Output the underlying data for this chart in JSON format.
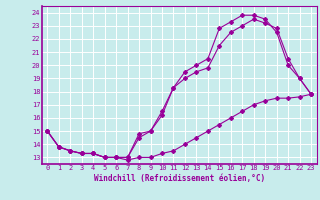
{
  "title": "",
  "xlabel": "Windchill (Refroidissement éolien,°C)",
  "ylabel": "",
  "bg_color": "#c8ecec",
  "grid_color": "#ffffff",
  "line_color": "#990099",
  "xlim": [
    -0.5,
    23.5
  ],
  "ylim": [
    12.5,
    24.5
  ],
  "xticks": [
    0,
    1,
    2,
    3,
    4,
    5,
    6,
    7,
    8,
    9,
    10,
    11,
    12,
    13,
    14,
    15,
    16,
    17,
    18,
    19,
    20,
    21,
    22,
    23
  ],
  "yticks": [
    13,
    14,
    15,
    16,
    17,
    18,
    19,
    20,
    21,
    22,
    23,
    24
  ],
  "line1_x": [
    0,
    1,
    2,
    3,
    4,
    5,
    6,
    7,
    8,
    9,
    10,
    11,
    12,
    13,
    14,
    15,
    16,
    17,
    18,
    19,
    20,
    21,
    22,
    23
  ],
  "line1_y": [
    15.0,
    13.8,
    13.5,
    13.3,
    13.3,
    13.0,
    13.0,
    12.8,
    13.0,
    13.0,
    13.3,
    13.5,
    14.0,
    14.5,
    15.0,
    15.5,
    16.0,
    16.5,
    17.0,
    17.3,
    17.5,
    17.5,
    17.6,
    17.8
  ],
  "line2_x": [
    0,
    1,
    2,
    3,
    4,
    5,
    6,
    7,
    8,
    9,
    10,
    11,
    12,
    13,
    14,
    15,
    16,
    17,
    18,
    19,
    20,
    21,
    22,
    23
  ],
  "line2_y": [
    15.0,
    13.8,
    13.5,
    13.3,
    13.3,
    13.0,
    13.0,
    13.0,
    14.5,
    15.0,
    16.2,
    18.3,
    19.0,
    19.5,
    19.8,
    21.5,
    22.5,
    23.0,
    23.5,
    23.2,
    22.8,
    20.5,
    19.0,
    17.8
  ],
  "line3_x": [
    0,
    1,
    2,
    3,
    4,
    5,
    6,
    7,
    8,
    9,
    10,
    11,
    12,
    13,
    14,
    15,
    16,
    17,
    18,
    19,
    20,
    21,
    22,
    23
  ],
  "line3_y": [
    15.0,
    13.8,
    13.5,
    13.3,
    13.3,
    13.0,
    13.0,
    13.0,
    14.8,
    15.0,
    16.5,
    18.3,
    19.5,
    20.0,
    20.5,
    22.8,
    23.3,
    23.8,
    23.8,
    23.5,
    22.5,
    20.0,
    19.0,
    17.8
  ],
  "tick_fontsize": 5.0,
  "xlabel_fontsize": 5.5,
  "marker_size": 2.0,
  "line_width": 0.8
}
